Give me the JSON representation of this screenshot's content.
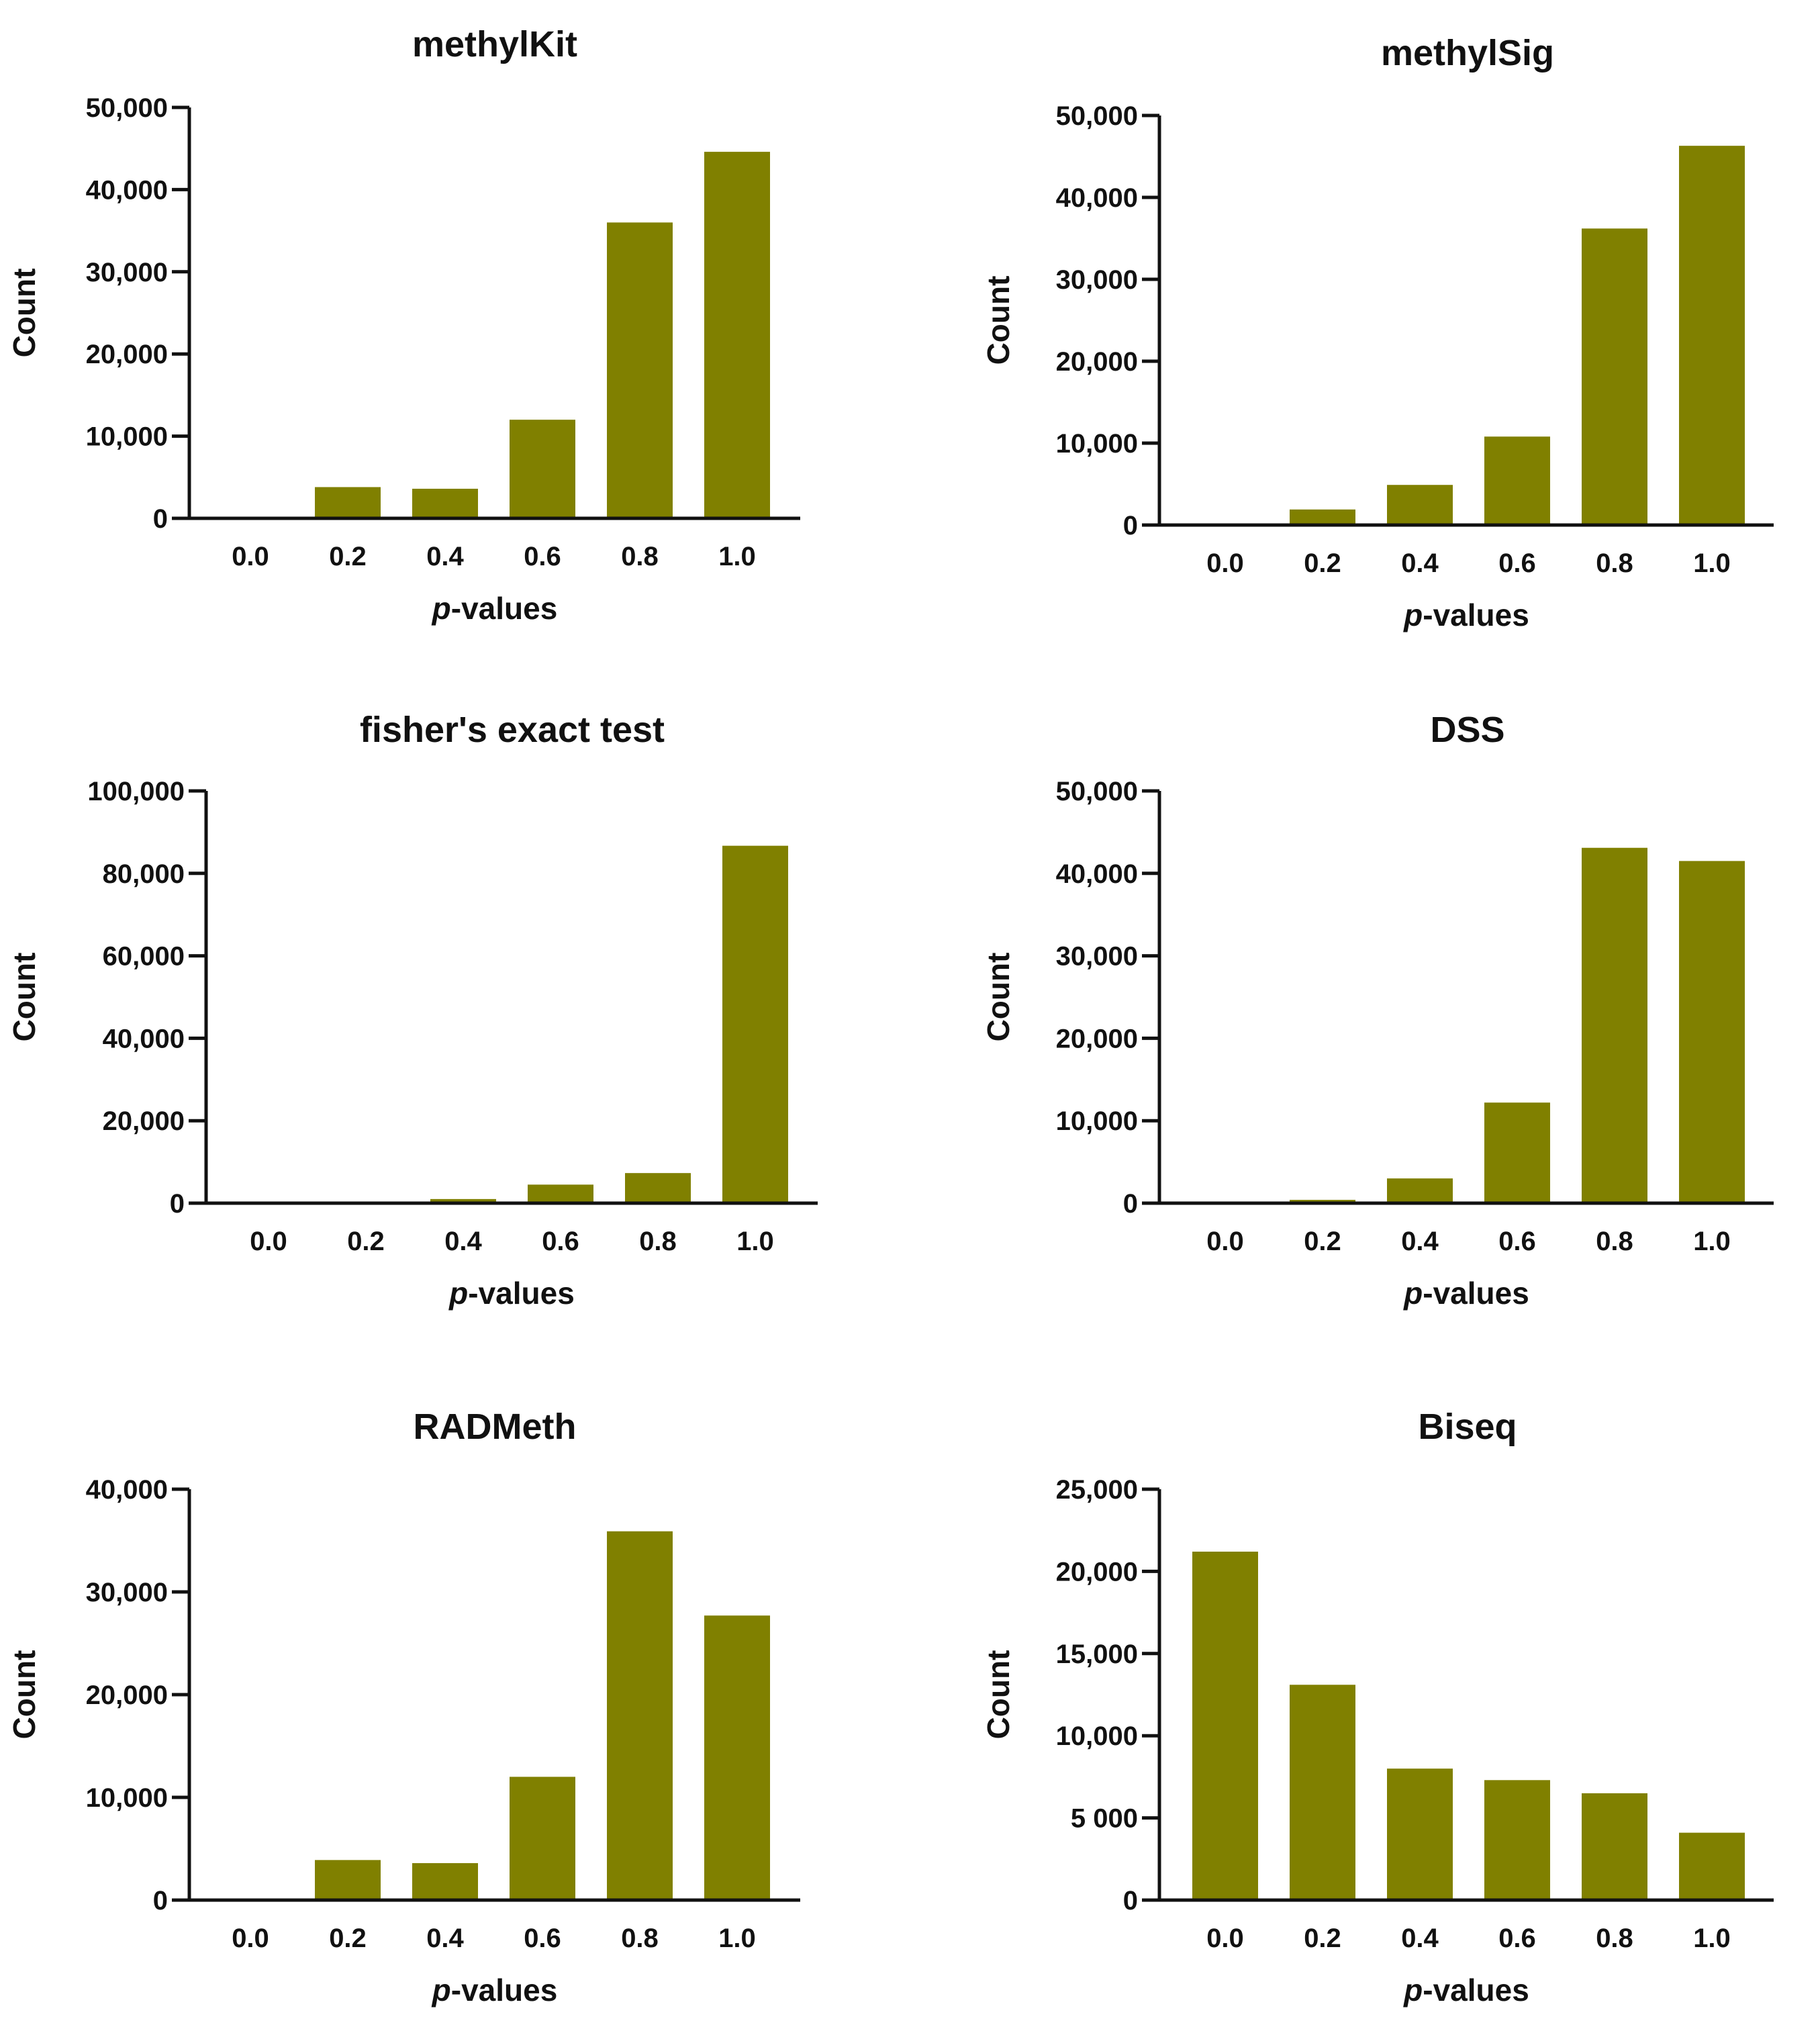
{
  "chart_data": [
    {
      "type": "bar",
      "title": "methylKit",
      "categories": [
        "0.0",
        "0.2",
        "0.4",
        "0.6",
        "0.8",
        "1.0"
      ],
      "values": [
        0,
        3800,
        3600,
        12000,
        36000,
        44600
      ],
      "xlabel_italic": "p",
      "xlabel_rest": "-values",
      "ylabel": "Count",
      "ylim": [
        0,
        50000
      ],
      "yticks": [
        0,
        10000,
        20000,
        30000,
        40000,
        50000
      ],
      "ytick_labels": [
        "0",
        "10,000",
        "20,000",
        "30,000",
        "40,000",
        "50,000"
      ],
      "bar_color": "#808000",
      "grid": false
    },
    {
      "type": "bar",
      "title": "methylSig",
      "categories": [
        "0.0",
        "0.2",
        "0.4",
        "0.6",
        "0.8",
        "1.0"
      ],
      "values": [
        0,
        1900,
        4900,
        10800,
        36200,
        46300
      ],
      "xlabel_italic": "p",
      "xlabel_rest": "-values",
      "ylabel": "Count",
      "ylim": [
        0,
        50000
      ],
      "yticks": [
        0,
        10000,
        20000,
        30000,
        40000,
        50000
      ],
      "ytick_labels": [
        "0",
        "10,000",
        "20,000",
        "30,000",
        "40,000",
        "50,000"
      ],
      "bar_color": "#808000",
      "grid": false
    },
    {
      "type": "bar",
      "title": "fisher's exact test",
      "categories": [
        "0.0",
        "0.2",
        "0.4",
        "0.6",
        "0.8",
        "1.0"
      ],
      "values": [
        0,
        0,
        1000,
        4500,
        7300,
        86700
      ],
      "xlabel_italic": "p",
      "xlabel_rest": "-values",
      "ylabel": "Count",
      "ylim": [
        0,
        100000
      ],
      "yticks": [
        0,
        20000,
        40000,
        60000,
        80000,
        100000
      ],
      "ytick_labels": [
        "0",
        "20,000",
        "40,000",
        "60,000",
        "80,000",
        "100,000"
      ],
      "bar_color": "#808000",
      "grid": false
    },
    {
      "type": "bar",
      "title": "DSS",
      "categories": [
        "0.0",
        "0.2",
        "0.4",
        "0.6",
        "0.8",
        "1.0"
      ],
      "values": [
        0,
        400,
        3000,
        12200,
        43100,
        41500
      ],
      "xlabel_italic": "p",
      "xlabel_rest": "-values",
      "ylabel": "Count",
      "ylim": [
        0,
        50000
      ],
      "yticks": [
        0,
        10000,
        20000,
        30000,
        40000,
        50000
      ],
      "ytick_labels": [
        "0",
        "10,000",
        "20,000",
        "30,000",
        "40,000",
        "50,000"
      ],
      "bar_color": "#808000",
      "grid": false
    },
    {
      "type": "bar",
      "title": "RADMeth",
      "categories": [
        "0.0",
        "0.2",
        "0.4",
        "0.6",
        "0.8",
        "1.0"
      ],
      "values": [
        0,
        3900,
        3600,
        12000,
        35900,
        27700
      ],
      "xlabel_italic": "p",
      "xlabel_rest": "-values",
      "ylabel": "Count",
      "ylim": [
        0,
        40000
      ],
      "yticks": [
        0,
        10000,
        20000,
        30000,
        40000
      ],
      "ytick_labels": [
        "0",
        "10,000",
        "20,000",
        "30,000",
        "40,000"
      ],
      "bar_color": "#808000",
      "grid": false
    },
    {
      "type": "bar",
      "title": "Biseq",
      "categories": [
        "0.0",
        "0.2",
        "0.4",
        "0.6",
        "0.8",
        "1.0"
      ],
      "values": [
        21200,
        13100,
        8000,
        7300,
        6500,
        4100
      ],
      "xlabel_italic": "p",
      "xlabel_rest": "-values",
      "ylabel": "Count",
      "ylim": [
        0,
        25000
      ],
      "yticks": [
        0,
        5000,
        10000,
        15000,
        20000,
        25000
      ],
      "ytick_labels": [
        "0",
        "5 000",
        "10,000",
        "15,000",
        "20,000",
        "25,000"
      ],
      "bar_color": "#808000",
      "grid": false
    }
  ]
}
